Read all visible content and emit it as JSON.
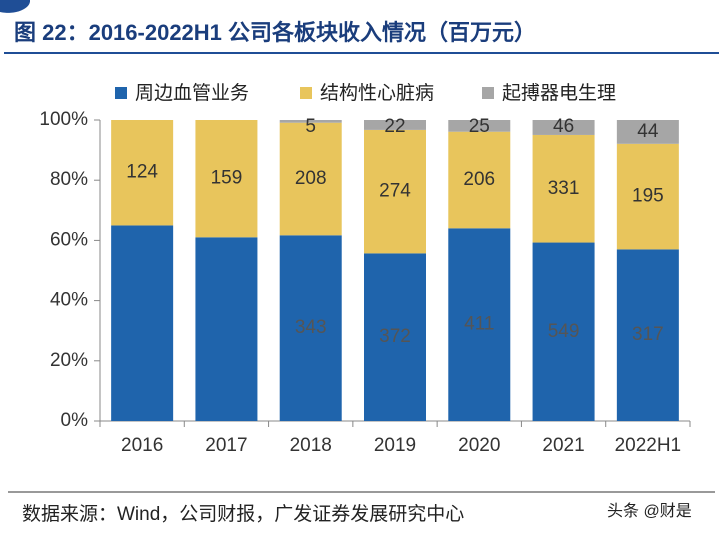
{
  "chart_data": {
    "type": "bar",
    "stacking": "percent",
    "title": "图 22：2016-2022H1 公司各板块收入情况（百万元）",
    "categories": [
      "2016",
      "2017",
      "2018",
      "2019",
      "2020",
      "2021",
      "2022H1"
    ],
    "series": [
      {
        "name": "周边血管业务",
        "color": "#1f64ac",
        "values": [
          230,
          249,
          343,
          372,
          411,
          549,
          317
        ],
        "value_labels": [
          null,
          null,
          "343",
          "372",
          "411",
          "549",
          "317"
        ]
      },
      {
        "name": "结构性心脏病",
        "color": "#e8c55c",
        "values": [
          124,
          159,
          208,
          274,
          206,
          331,
          195
        ],
        "value_labels": [
          "124",
          "159",
          "208",
          "274",
          "206",
          "331",
          "195"
        ]
      },
      {
        "name": "起搏器电生理",
        "color": "#a6a6a6",
        "values": [
          0,
          0,
          5,
          22,
          25,
          46,
          44
        ],
        "value_labels": [
          null,
          null,
          "5",
          "22",
          "25",
          "46",
          "44"
        ]
      }
    ],
    "ylim": [
      0,
      100
    ],
    "yticks": [
      {
        "value": 0,
        "label": "0%"
      },
      {
        "value": 20,
        "label": "20%"
      },
      {
        "value": 40,
        "label": "40%"
      },
      {
        "value": 60,
        "label": "60%"
      },
      {
        "value": 80,
        "label": "80%"
      },
      {
        "value": 100,
        "label": "100%"
      }
    ],
    "source": "数据来源：Wind，公司财报，广发证券发展研究中心",
    "watermark": "头条 @财是"
  }
}
